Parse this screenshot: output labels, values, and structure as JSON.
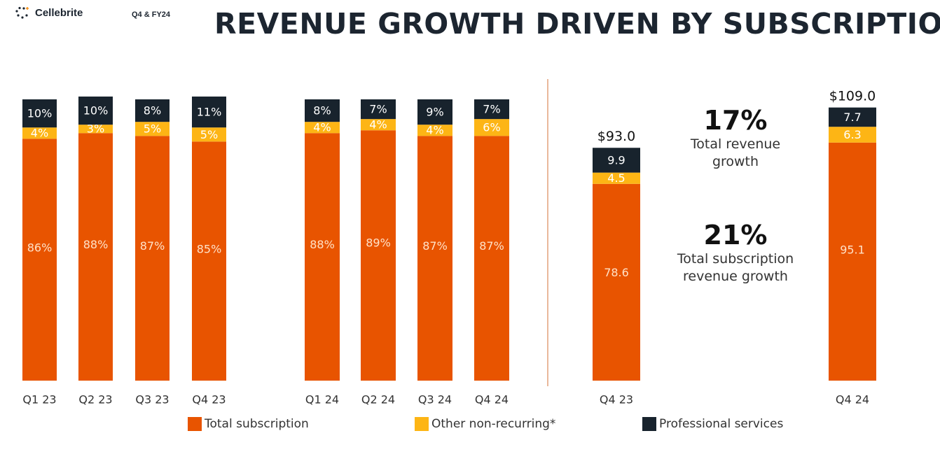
{
  "header": {
    "logo_text": "Cellebrite",
    "period": "Q4 & FY24",
    "title": "REVENUE GROWTH DRIVEN BY SUBSCRIPTION"
  },
  "colors": {
    "subscription": "#e85400",
    "other": "#fdb515",
    "services": "#18232d",
    "logo_accent": "#f7941d"
  },
  "stats": [
    {
      "value": "17%",
      "label_lines": [
        "Total revenue",
        "growth"
      ]
    },
    {
      "value": "21%",
      "label_lines": [
        "Total subscription",
        "revenue growth"
      ]
    }
  ],
  "legend": [
    {
      "label": "Total subscription",
      "color": "#e85400"
    },
    {
      "label": "Other non-recurring*",
      "color": "#fdb515"
    },
    {
      "label": "Professional services",
      "color": "#18232d"
    }
  ],
  "chart_data": [
    {
      "type": "bar",
      "stacked": true,
      "unit": "percent of revenue",
      "categories": [
        "Q1 23",
        "Q2 23",
        "Q3 23",
        "Q4 23"
      ],
      "series": [
        {
          "name": "Total subscription",
          "values": [
            86,
            88,
            87,
            85
          ],
          "labels": [
            "86%",
            "88%",
            "87%",
            "85%"
          ]
        },
        {
          "name": "Other non-recurring*",
          "values": [
            4,
            3,
            5,
            5
          ],
          "labels": [
            "4%",
            "3%",
            "5%",
            "5%"
          ]
        },
        {
          "name": "Professional services",
          "values": [
            10,
            10,
            8,
            11
          ],
          "labels": [
            "10%",
            "10%",
            "8%",
            "11%"
          ]
        }
      ]
    },
    {
      "type": "bar",
      "stacked": true,
      "unit": "percent of revenue",
      "categories": [
        "Q1 24",
        "Q2 24",
        "Q3 24",
        "Q4 24"
      ],
      "series": [
        {
          "name": "Total subscription",
          "values": [
            88,
            89,
            87,
            87
          ],
          "labels": [
            "88%",
            "89%",
            "87%",
            "87%"
          ]
        },
        {
          "name": "Other non-recurring*",
          "values": [
            4,
            4,
            4,
            6
          ],
          "labels": [
            "4%",
            "4%",
            "4%",
            "6%"
          ]
        },
        {
          "name": "Professional services",
          "values": [
            8,
            7,
            9,
            7
          ],
          "labels": [
            "8%",
            "7%",
            "9%",
            "7%"
          ]
        }
      ]
    },
    {
      "type": "bar",
      "stacked": true,
      "unit": "$M",
      "categories": [
        "Q4 23",
        "Q4 24"
      ],
      "totals": [
        "$93.0",
        "$109.0"
      ],
      "series": [
        {
          "name": "Total subscription",
          "values": [
            78.6,
            95.1
          ],
          "labels": [
            "78.6",
            "95.1"
          ]
        },
        {
          "name": "Other non-recurring*",
          "values": [
            4.5,
            6.3
          ],
          "labels": [
            "4.5",
            "6.3"
          ]
        },
        {
          "name": "Professional services",
          "values": [
            9.9,
            7.7
          ],
          "labels": [
            "9.9",
            "7.7"
          ]
        }
      ]
    }
  ]
}
